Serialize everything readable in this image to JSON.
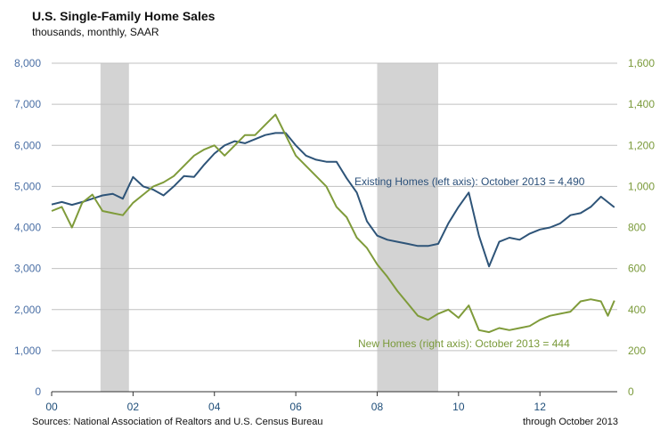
{
  "header": {
    "title": "U.S. Single-Family Home Sales",
    "subtitle": "thousands, monthly, SAAR"
  },
  "footer": {
    "source": "Sources: National Association of Realtors and U.S. Census Bureau",
    "through": "through October 2013"
  },
  "colors": {
    "existing": "#2e5478",
    "new": "#7f9b3a",
    "recession": "#d3d3d3",
    "grid": "#c0c0c0"
  },
  "chart_data": {
    "type": "line",
    "title": "U.S. Single-Family Home Sales",
    "subtitle": "thousands, monthly, SAAR",
    "left_axis": {
      "ylim": [
        0,
        8000
      ],
      "ticks": [
        "0",
        "1,000",
        "2,000",
        "3,000",
        "4,000",
        "5,000",
        "6,000",
        "7,000",
        "8,000"
      ]
    },
    "right_axis": {
      "ylim": [
        0,
        1600
      ],
      "ticks": [
        "0",
        "200",
        "400",
        "600",
        "800",
        "1,000",
        "1,200",
        "1,400",
        "1,600"
      ]
    },
    "x_axis": {
      "xlim": [
        2000.0,
        2013.9
      ],
      "ticks": [
        {
          "label": "00",
          "x": 2000
        },
        {
          "label": "02",
          "x": 2002
        },
        {
          "label": "04",
          "x": 2004
        },
        {
          "label": "06",
          "x": 2006
        },
        {
          "label": "08",
          "x": 2008
        },
        {
          "label": "10",
          "x": 2010
        },
        {
          "label": "12",
          "x": 2012
        }
      ]
    },
    "grid": "horizontal",
    "recessions": [
      [
        2001.2,
        2001.9
      ],
      [
        2008.0,
        2009.5
      ]
    ],
    "series": [
      {
        "name": "Existing Homes (left axis)",
        "axis": "left",
        "annotation": "Existing Homes (left axis): October 2013 = 4,490",
        "points": [
          [
            2000.0,
            4560
          ],
          [
            2000.25,
            4620
          ],
          [
            2000.5,
            4550
          ],
          [
            2000.75,
            4620
          ],
          [
            2001.0,
            4700
          ],
          [
            2001.25,
            4780
          ],
          [
            2001.5,
            4820
          ],
          [
            2001.75,
            4700
          ],
          [
            2002.0,
            5230
          ],
          [
            2002.25,
            5000
          ],
          [
            2002.5,
            4920
          ],
          [
            2002.75,
            4780
          ],
          [
            2003.0,
            5000
          ],
          [
            2003.25,
            5250
          ],
          [
            2003.5,
            5230
          ],
          [
            2003.75,
            5530
          ],
          [
            2004.0,
            5800
          ],
          [
            2004.25,
            6000
          ],
          [
            2004.5,
            6100
          ],
          [
            2004.75,
            6050
          ],
          [
            2005.0,
            6150
          ],
          [
            2005.25,
            6250
          ],
          [
            2005.5,
            6300
          ],
          [
            2005.75,
            6300
          ],
          [
            2006.0,
            6000
          ],
          [
            2006.25,
            5750
          ],
          [
            2006.5,
            5650
          ],
          [
            2006.75,
            5600
          ],
          [
            2007.0,
            5600
          ],
          [
            2007.25,
            5200
          ],
          [
            2007.5,
            4850
          ],
          [
            2007.75,
            4150
          ],
          [
            2008.0,
            3800
          ],
          [
            2008.25,
            3700
          ],
          [
            2008.5,
            3650
          ],
          [
            2008.75,
            3600
          ],
          [
            2009.0,
            3550
          ],
          [
            2009.25,
            3550
          ],
          [
            2009.5,
            3600
          ],
          [
            2009.75,
            4100
          ],
          [
            2010.0,
            4500
          ],
          [
            2010.25,
            4850
          ],
          [
            2010.5,
            3800
          ],
          [
            2010.75,
            3050
          ],
          [
            2011.0,
            3650
          ],
          [
            2011.25,
            3750
          ],
          [
            2011.5,
            3700
          ],
          [
            2011.75,
            3850
          ],
          [
            2012.0,
            3950
          ],
          [
            2012.25,
            4000
          ],
          [
            2012.5,
            4100
          ],
          [
            2012.75,
            4300
          ],
          [
            2013.0,
            4350
          ],
          [
            2013.25,
            4500
          ],
          [
            2013.5,
            4750
          ],
          [
            2013.83,
            4490
          ]
        ]
      },
      {
        "name": "New Homes (right axis)",
        "axis": "right",
        "annotation": "New Homes (right axis): October 2013 = 444",
        "points": [
          [
            2000.0,
            880
          ],
          [
            2000.25,
            900
          ],
          [
            2000.5,
            800
          ],
          [
            2000.75,
            920
          ],
          [
            2001.0,
            960
          ],
          [
            2001.25,
            880
          ],
          [
            2001.5,
            870
          ],
          [
            2001.75,
            860
          ],
          [
            2002.0,
            920
          ],
          [
            2002.25,
            960
          ],
          [
            2002.5,
            1000
          ],
          [
            2002.75,
            1020
          ],
          [
            2003.0,
            1050
          ],
          [
            2003.25,
            1100
          ],
          [
            2003.5,
            1150
          ],
          [
            2003.75,
            1180
          ],
          [
            2004.0,
            1200
          ],
          [
            2004.25,
            1150
          ],
          [
            2004.5,
            1200
          ],
          [
            2004.75,
            1250
          ],
          [
            2005.0,
            1250
          ],
          [
            2005.25,
            1300
          ],
          [
            2005.5,
            1350
          ],
          [
            2005.75,
            1250
          ],
          [
            2006.0,
            1150
          ],
          [
            2006.25,
            1100
          ],
          [
            2006.5,
            1050
          ],
          [
            2006.75,
            1000
          ],
          [
            2007.0,
            900
          ],
          [
            2007.25,
            850
          ],
          [
            2007.5,
            750
          ],
          [
            2007.75,
            700
          ],
          [
            2008.0,
            620
          ],
          [
            2008.25,
            560
          ],
          [
            2008.5,
            490
          ],
          [
            2008.75,
            430
          ],
          [
            2009.0,
            370
          ],
          [
            2009.25,
            350
          ],
          [
            2009.5,
            380
          ],
          [
            2009.75,
            400
          ],
          [
            2010.0,
            360
          ],
          [
            2010.25,
            420
          ],
          [
            2010.5,
            300
          ],
          [
            2010.75,
            290
          ],
          [
            2011.0,
            310
          ],
          [
            2011.25,
            300
          ],
          [
            2011.5,
            310
          ],
          [
            2011.75,
            320
          ],
          [
            2012.0,
            350
          ],
          [
            2012.25,
            370
          ],
          [
            2012.5,
            380
          ],
          [
            2012.75,
            390
          ],
          [
            2013.0,
            440
          ],
          [
            2013.25,
            450
          ],
          [
            2013.5,
            440
          ],
          [
            2013.67,
            370
          ],
          [
            2013.83,
            444
          ]
        ]
      }
    ]
  }
}
